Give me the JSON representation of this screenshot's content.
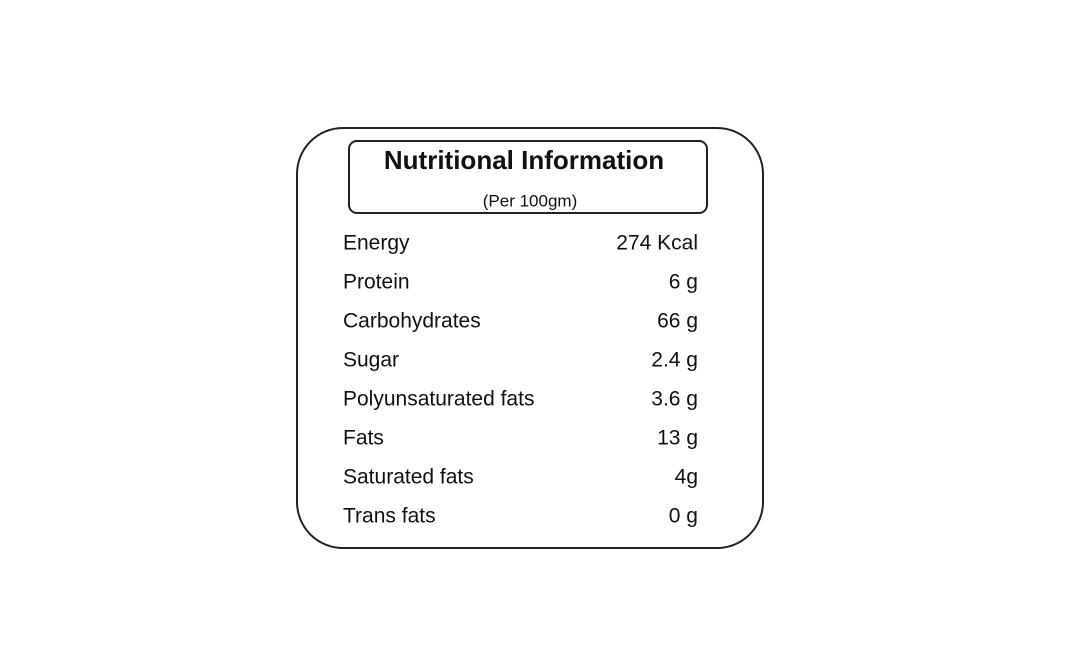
{
  "header": {
    "title": "Nutritional Information",
    "subtitle": "(Per 100gm)"
  },
  "table": {
    "rows": [
      [
        "Energy",
        "274 Kcal"
      ],
      [
        "Protein",
        "6 g"
      ],
      [
        "Carbohydrates",
        "66 g"
      ],
      [
        "Sugar",
        "2.4 g"
      ],
      [
        "Polyunsaturated fats",
        "3.6 g"
      ],
      [
        "Fats",
        "13 g"
      ],
      [
        "Saturated fats",
        "4g"
      ],
      [
        "Trans fats",
        "0 g"
      ]
    ]
  }
}
